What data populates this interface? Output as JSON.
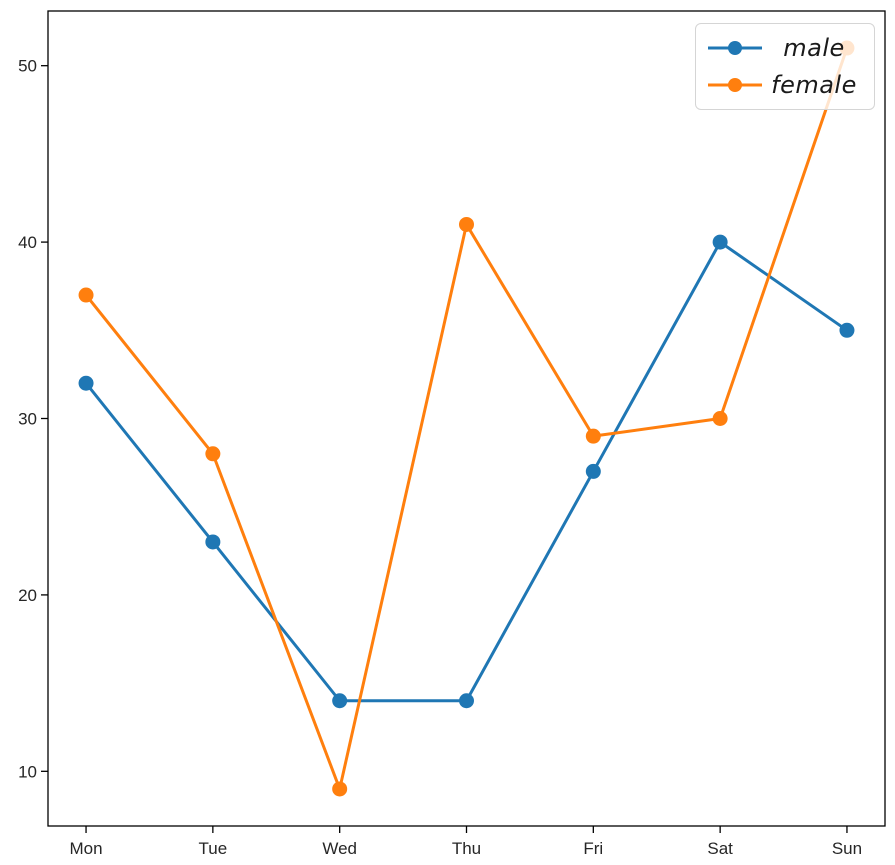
{
  "chart_data": {
    "type": "line",
    "title": "",
    "xlabel": "",
    "ylabel": "",
    "categories": [
      "Mon",
      "Tue",
      "Wed",
      "Thu",
      "Fri",
      "Sat",
      "Sun"
    ],
    "series": [
      {
        "name": "male",
        "color": "#1f77b4",
        "values": [
          32,
          23,
          14,
          14,
          27,
          40,
          35
        ]
      },
      {
        "name": "female",
        "color": "#ff7f0e",
        "values": [
          37,
          28,
          9,
          41,
          29,
          30,
          51
        ]
      }
    ],
    "marker": "o",
    "y_ticks": [
      10,
      20,
      30,
      40,
      50
    ],
    "ylim": [
      6.9,
      53.1
    ],
    "xlim": [
      -0.3,
      6.3
    ],
    "grid": false,
    "legend": {
      "position": "upper right",
      "entries": [
        "male",
        "female"
      ]
    },
    "colors": {
      "axis": "#000000",
      "tick_label": "#262626",
      "legend_edge": "#d5d5d5"
    }
  }
}
